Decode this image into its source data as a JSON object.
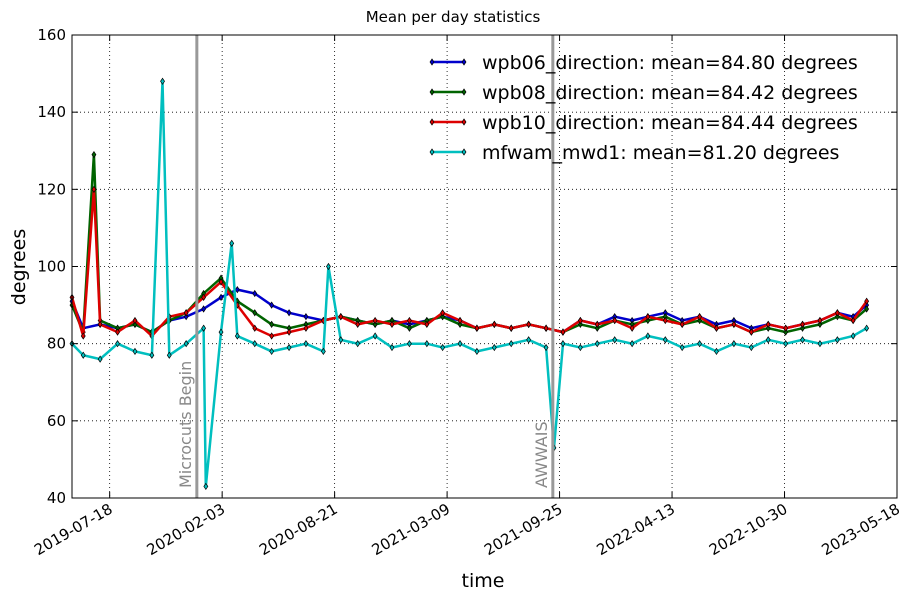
{
  "chart_data": {
    "type": "line",
    "title": "Mean per day statistics",
    "xlabel": "time",
    "ylabel": "degrees",
    "ylim": [
      40,
      160
    ],
    "yticks": [
      40,
      60,
      80,
      100,
      120,
      140,
      160
    ],
    "xlim": [
      "2019-05-12",
      "2023-05-18"
    ],
    "xticks": [
      "2019-07-18",
      "2020-02-03",
      "2020-08-21",
      "2021-03-09",
      "2021-09-25",
      "2022-04-13",
      "2022-10-30",
      "2023-05-18"
    ],
    "grid": true,
    "legend_position": "top-right",
    "events": [
      {
        "date": "2019-12-20",
        "label": "Microcuts Begin"
      },
      {
        "date": "2021-09-13",
        "label": "AWWAIS"
      }
    ],
    "series": [
      {
        "name": "wpb06_direction: mean=84.80 degrees",
        "color": "#0000cc",
        "x": [
          "2019-05-12",
          "2019-06-01",
          "2019-07-01",
          "2019-08-01",
          "2019-09-01",
          "2019-10-01",
          "2019-11-01",
          "2019-12-01",
          "2020-01-01",
          "2020-02-01",
          "2020-03-01",
          "2020-04-01",
          "2020-05-01",
          "2020-06-01",
          "2020-07-01",
          "2020-08-01",
          "2020-09-01",
          "2020-10-01",
          "2020-11-01",
          "2020-12-01",
          "2021-01-01",
          "2021-02-01",
          "2021-03-01",
          "2021-04-01",
          "2021-05-01",
          "2021-06-01",
          "2021-07-01",
          "2021-08-01",
          "2021-09-01",
          "2021-10-01",
          "2021-11-01",
          "2021-12-01",
          "2022-01-01",
          "2022-02-01",
          "2022-03-01",
          "2022-04-01",
          "2022-05-01",
          "2022-06-01",
          "2022-07-01",
          "2022-08-01",
          "2022-09-01",
          "2022-10-01",
          "2022-11-01",
          "2022-12-01",
          "2023-01-01",
          "2023-02-01",
          "2023-03-01",
          "2023-03-25"
        ],
        "y": [
          91,
          84,
          85,
          84,
          85,
          83,
          86,
          87,
          89,
          92,
          94,
          93,
          90,
          88,
          87,
          86,
          87,
          86,
          85,
          86,
          85,
          86,
          87,
          86,
          84,
          85,
          84,
          85,
          84,
          83,
          86,
          85,
          87,
          86,
          87,
          88,
          86,
          87,
          85,
          86,
          84,
          85,
          84,
          85,
          86,
          88,
          87,
          90
        ]
      },
      {
        "name": "wpb08_direction: mean=84.42 degrees",
        "color": "#006400",
        "x": [
          "2019-05-12",
          "2019-06-01",
          "2019-06-20",
          "2019-07-01",
          "2019-08-01",
          "2019-09-01",
          "2019-10-01",
          "2019-11-01",
          "2019-12-01",
          "2020-01-01",
          "2020-02-01",
          "2020-03-01",
          "2020-04-01",
          "2020-05-01",
          "2020-06-01",
          "2020-07-01",
          "2020-08-01",
          "2020-09-01",
          "2020-10-01",
          "2020-11-01",
          "2020-12-01",
          "2021-01-01",
          "2021-02-01",
          "2021-03-01",
          "2021-04-01",
          "2021-05-01",
          "2021-06-01",
          "2021-07-01",
          "2021-08-01",
          "2021-09-01",
          "2021-10-01",
          "2021-11-01",
          "2021-12-01",
          "2022-01-01",
          "2022-02-01",
          "2022-03-01",
          "2022-04-01",
          "2022-05-01",
          "2022-06-01",
          "2022-07-01",
          "2022-08-01",
          "2022-09-01",
          "2022-10-01",
          "2022-11-01",
          "2022-12-01",
          "2023-01-01",
          "2023-02-01",
          "2023-03-01",
          "2023-03-25"
        ],
        "y": [
          90,
          83,
          129,
          86,
          84,
          85,
          83,
          86,
          88,
          93,
          97,
          91,
          88,
          85,
          84,
          85,
          86,
          87,
          86,
          85,
          86,
          84,
          86,
          87,
          85,
          84,
          85,
          84,
          85,
          84,
          83,
          85,
          84,
          86,
          85,
          86,
          87,
          85,
          86,
          84,
          85,
          83,
          84,
          83,
          84,
          85,
          87,
          86,
          89
        ]
      },
      {
        "name": "wpb10_direction: mean=84.44 degrees",
        "color": "#dd0000",
        "x": [
          "2019-05-12",
          "2019-06-01",
          "2019-06-20",
          "2019-07-01",
          "2019-08-01",
          "2019-09-01",
          "2019-10-01",
          "2019-11-01",
          "2019-12-01",
          "2020-01-01",
          "2020-02-01",
          "2020-03-01",
          "2020-04-01",
          "2020-05-01",
          "2020-06-01",
          "2020-07-01",
          "2020-08-01",
          "2020-09-01",
          "2020-10-01",
          "2020-11-01",
          "2020-12-01",
          "2021-01-01",
          "2021-02-01",
          "2021-03-01",
          "2021-04-01",
          "2021-05-01",
          "2021-06-01",
          "2021-07-01",
          "2021-08-01",
          "2021-09-01",
          "2021-10-01",
          "2021-11-01",
          "2021-12-01",
          "2022-01-01",
          "2022-02-01",
          "2022-03-01",
          "2022-04-01",
          "2022-05-01",
          "2022-06-01",
          "2022-07-01",
          "2022-08-01",
          "2022-09-01",
          "2022-10-01",
          "2022-11-01",
          "2022-12-01",
          "2023-01-01",
          "2023-02-01",
          "2023-03-01",
          "2023-03-25"
        ],
        "y": [
          92,
          82,
          120,
          85,
          83,
          86,
          82,
          87,
          88,
          92,
          96,
          90,
          84,
          82,
          83,
          84,
          86,
          87,
          85,
          86,
          85,
          86,
          85,
          88,
          86,
          84,
          85,
          84,
          85,
          84,
          83,
          86,
          85,
          86,
          84,
          87,
          86,
          85,
          87,
          84,
          85,
          83,
          85,
          84,
          85,
          86,
          88,
          86,
          91
        ]
      },
      {
        "name": "mfwam_mwd1: mean=81.20 degrees",
        "color": "#00bfbf",
        "x": [
          "2019-05-12",
          "2019-06-01",
          "2019-07-01",
          "2019-08-01",
          "2019-09-01",
          "2019-10-01",
          "2019-10-20",
          "2019-11-01",
          "2019-12-01",
          "2020-01-01",
          "2020-01-05",
          "2020-02-01",
          "2020-02-20",
          "2020-03-01",
          "2020-04-01",
          "2020-05-01",
          "2020-06-01",
          "2020-07-01",
          "2020-08-01",
          "2020-08-10",
          "2020-09-01",
          "2020-10-01",
          "2020-11-01",
          "2020-12-01",
          "2021-01-01",
          "2021-02-01",
          "2021-03-01",
          "2021-04-01",
          "2021-05-01",
          "2021-06-01",
          "2021-07-01",
          "2021-08-01",
          "2021-09-01",
          "2021-09-15",
          "2021-10-01",
          "2021-11-01",
          "2021-12-01",
          "2022-01-01",
          "2022-02-01",
          "2022-03-01",
          "2022-04-01",
          "2022-05-01",
          "2022-06-01",
          "2022-07-01",
          "2022-08-01",
          "2022-09-01",
          "2022-10-01",
          "2022-11-01",
          "2022-12-01",
          "2023-01-01",
          "2023-02-01",
          "2023-03-01",
          "2023-03-25"
        ],
        "y": [
          80,
          77,
          76,
          80,
          78,
          77,
          148,
          77,
          80,
          84,
          43,
          83,
          106,
          82,
          80,
          78,
          79,
          80,
          78,
          100,
          81,
          80,
          82,
          79,
          80,
          80,
          79,
          80,
          78,
          79,
          80,
          81,
          79,
          53,
          80,
          79,
          80,
          81,
          80,
          82,
          81,
          79,
          80,
          78,
          80,
          79,
          81,
          80,
          81,
          80,
          81,
          82,
          84
        ]
      }
    ]
  }
}
